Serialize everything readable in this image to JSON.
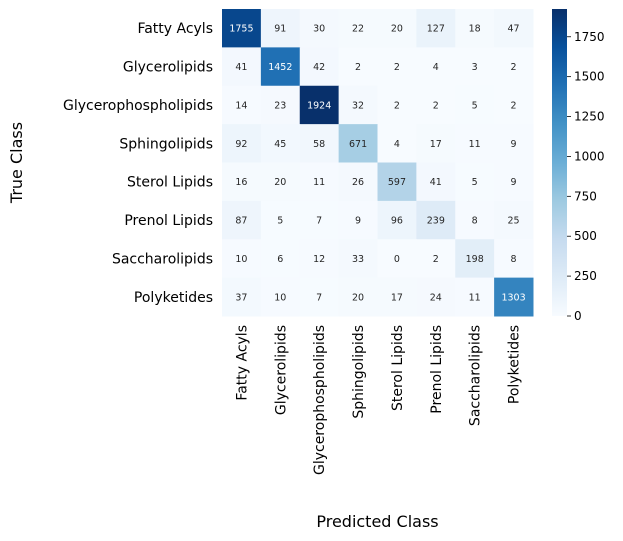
{
  "chart_data": {
    "type": "heatmap",
    "title": "",
    "xlabel": "Predicted Class",
    "ylabel": "True Class",
    "row_labels": [
      "Fatty Acyls",
      "Glycerolipids",
      "Glycerophospholipids",
      "Sphingolipids",
      "Sterol Lipids",
      "Prenol Lipids",
      "Saccharolipids",
      "Polyketides"
    ],
    "col_labels": [
      "Fatty Acyls",
      "Glycerolipids",
      "Glycerophospholipids",
      "Sphingolipids",
      "Sterol Lipids",
      "Prenol Lipids",
      "Saccharolipids",
      "Polyketides"
    ],
    "values": [
      [
        1755,
        91,
        30,
        22,
        20,
        127,
        18,
        47
      ],
      [
        41,
        1452,
        42,
        2,
        2,
        4,
        3,
        2
      ],
      [
        14,
        23,
        1924,
        32,
        2,
        2,
        5,
        2
      ],
      [
        92,
        45,
        58,
        671,
        4,
        17,
        11,
        9
      ],
      [
        16,
        20,
        11,
        26,
        597,
        41,
        5,
        9
      ],
      [
        87,
        5,
        7,
        9,
        96,
        239,
        8,
        25
      ],
      [
        10,
        6,
        12,
        33,
        0,
        2,
        198,
        8
      ],
      [
        37,
        10,
        7,
        20,
        17,
        24,
        11,
        1303
      ]
    ],
    "colormap": "Blues",
    "vmin": 0,
    "vmax": 1924,
    "colorbar_ticks": [
      0,
      250,
      500,
      750,
      1000,
      1250,
      1500,
      1750
    ]
  }
}
